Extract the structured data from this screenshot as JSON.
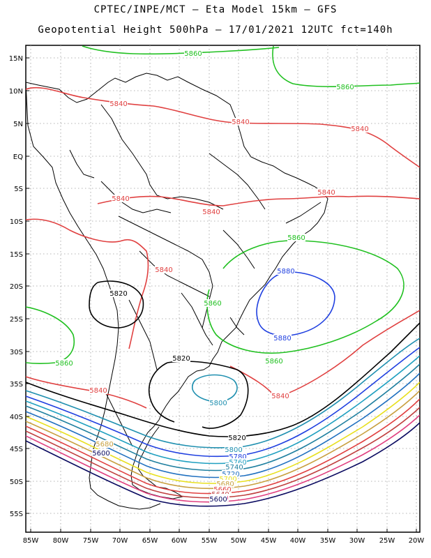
{
  "title": {
    "line1": "CPTEC/INPE/MCT –  Eta Model 15km – GFS",
    "line2": "Geopotential Height 500hPa – 17/01/2021 12UTC fct=140h"
  },
  "axes": {
    "lat_labels": [
      "15N",
      "10N",
      "5N",
      "EQ",
      "5S",
      "10S",
      "15S",
      "20S",
      "25S",
      "30S",
      "35S",
      "40S",
      "45S",
      "50S",
      "55S"
    ],
    "lon_labels": [
      "85W",
      "80W",
      "75W",
      "70W",
      "65W",
      "60W",
      "55W",
      "50W",
      "45W",
      "40W",
      "35W",
      "30W",
      "25W",
      "20W"
    ]
  },
  "contour_labels": [
    {
      "text": "5860",
      "color": "#20c020"
    },
    {
      "text": "5860",
      "color": "#20c020"
    },
    {
      "text": "5840",
      "color": "#e04040"
    },
    {
      "text": "5840",
      "color": "#e04040"
    },
    {
      "text": "5840",
      "color": "#e04040"
    },
    {
      "text": "5840",
      "color": "#e04040"
    },
    {
      "text": "5840",
      "color": "#e04040"
    },
    {
      "text": "5840",
      "color": "#e04040"
    },
    {
      "text": "5840",
      "color": "#e04040"
    },
    {
      "text": "5860",
      "color": "#20c020"
    },
    {
      "text": "5880",
      "color": "#2040e0"
    },
    {
      "text": "5820",
      "color": "#000000"
    },
    {
      "text": "5860",
      "color": "#20c020"
    },
    {
      "text": "5880",
      "color": "#2040e0"
    },
    {
      "text": "5860",
      "color": "#20c020"
    },
    {
      "text": "5860",
      "color": "#20c020"
    },
    {
      "text": "5820",
      "color": "#000000"
    },
    {
      "text": "5840",
      "color": "#e04040"
    },
    {
      "text": "5800",
      "color": "#2090b0"
    },
    {
      "text": "5840",
      "color": "#e04040"
    },
    {
      "text": "5820",
      "color": "#000000"
    },
    {
      "text": "5800",
      "color": "#2090b0"
    },
    {
      "text": "5780",
      "color": "#2040e0"
    },
    {
      "text": "5760",
      "color": "#20a0c0"
    },
    {
      "text": "5740",
      "color": "#2080a0"
    },
    {
      "text": "5720",
      "color": "#2070c0"
    },
    {
      "text": "5700",
      "color": "#e8e020"
    },
    {
      "text": "5680",
      "color": "#c8a040"
    },
    {
      "text": "5660",
      "color": "#e04040"
    },
    {
      "text": "5640",
      "color": "#c04040"
    },
    {
      "text": "5620",
      "color": "#e04080"
    },
    {
      "text": "5600",
      "color": "#0a0a60"
    },
    {
      "text": "5680",
      "color": "#c8a040"
    },
    {
      "text": "5600",
      "color": "#0a0a60"
    }
  ]
}
